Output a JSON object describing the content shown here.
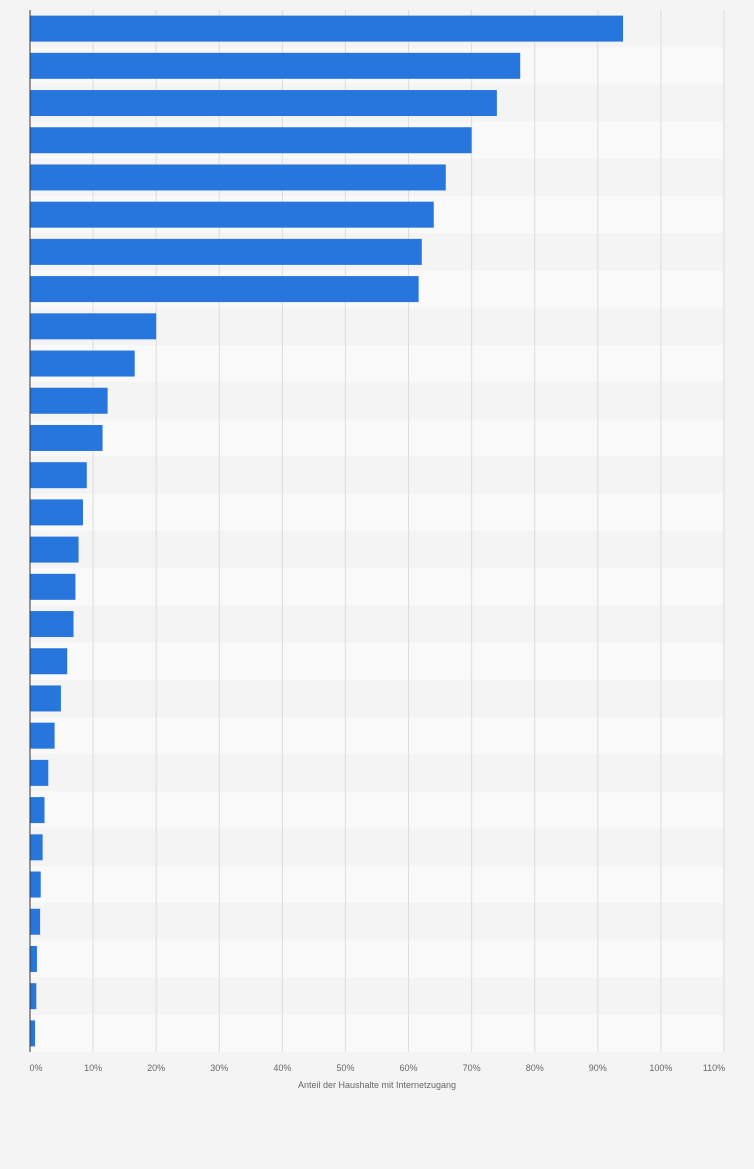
{
  "chart_data": {
    "type": "bar",
    "orientation": "horizontal",
    "xlabel": "Anteil der Haushalte mit Internetzugang",
    "ylabel": "",
    "xlim": [
      0,
      110
    ],
    "x_ticks": [
      "0%",
      "10%",
      "20%",
      "30%",
      "40%",
      "50%",
      "60%",
      "70%",
      "80%",
      "90%",
      "100%",
      "110%"
    ],
    "grid": true,
    "values": [
      94,
      77.7,
      74,
      70,
      65.9,
      64,
      62.1,
      61.6,
      20,
      16.6,
      12.3,
      11.5,
      9,
      8.4,
      7.7,
      7.2,
      6.9,
      5.9,
      4.9,
      3.9,
      2.9,
      2.3,
      2,
      1.7,
      1.6,
      1.1,
      1,
      0.8
    ],
    "bar_color": "#2776dd",
    "band_colors": [
      "#f4f4f4",
      "#f9f9f9"
    ]
  }
}
